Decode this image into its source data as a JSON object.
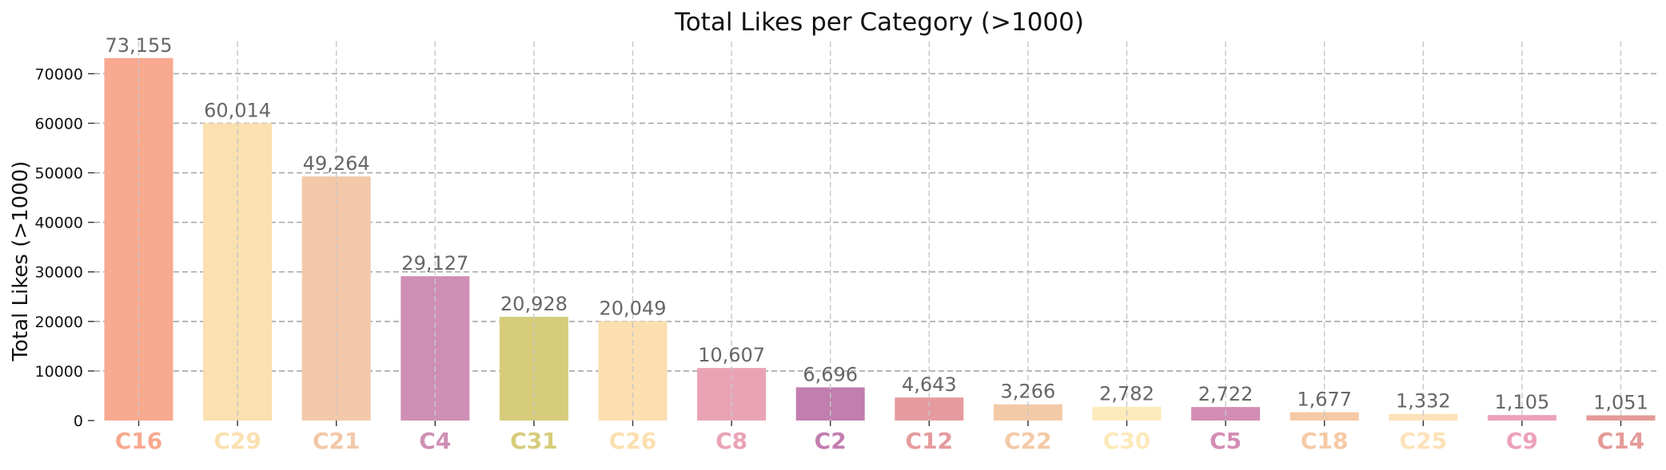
{
  "chart_data": {
    "type": "bar",
    "title": "Total Likes per Category (>1000)",
    "xlabel": "",
    "ylabel": "Total Likes (>1000)",
    "categories": [
      "C16",
      "C29",
      "C21",
      "C4",
      "C31",
      "C26",
      "C8",
      "C2",
      "C12",
      "C22",
      "C30",
      "C5",
      "C18",
      "C25",
      "C9",
      "C14"
    ],
    "values": [
      73155,
      60014,
      49264,
      29127,
      20928,
      20049,
      10607,
      6696,
      4643,
      3266,
      2782,
      2722,
      1677,
      1332,
      1105,
      1051
    ],
    "value_labels": [
      "73,155",
      "60,014",
      "49,264",
      "29,127",
      "20,928",
      "20,049",
      "10,607",
      "6,696",
      "4,643",
      "3,266",
      "2,782",
      "2,722",
      "1,677",
      "1,332",
      "1,105",
      "1,051"
    ],
    "colors": [
      "#f8a98f",
      "#fbe0b0",
      "#f2c8a8",
      "#cf8fb4",
      "#d6cc7a",
      "#fcdfb0",
      "#eaa3b5",
      "#c17eaf",
      "#e59b9d",
      "#f3caa6",
      "#fdeabb",
      "#d38db4",
      "#f5c9a5",
      "#fde2b9",
      "#eca2bb",
      "#e49a98"
    ],
    "ylim": [
      0,
      76500
    ],
    "yticks": [
      0,
      10000,
      20000,
      30000,
      40000,
      50000,
      60000,
      70000
    ],
    "ytick_labels": [
      "0",
      "10000",
      "20000",
      "30000",
      "40000",
      "50000",
      "60000",
      "70000"
    ],
    "grid": true,
    "legend": "none"
  }
}
